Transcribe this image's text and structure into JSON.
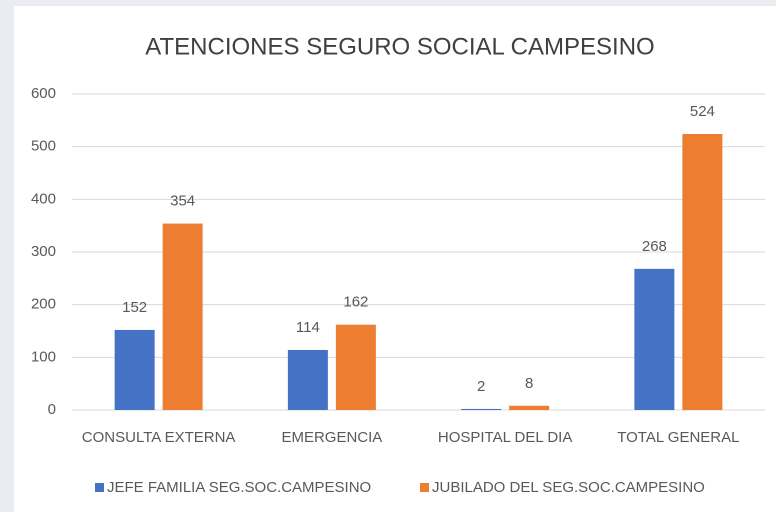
{
  "chart_data": {
    "type": "bar",
    "title": "ATENCIONES SEGURO SOCIAL CAMPESINO",
    "categories": [
      "CONSULTA EXTERNA",
      "EMERGENCIA",
      "HOSPITAL DEL DIA",
      "TOTAL GENERAL"
    ],
    "series": [
      {
        "name": "JEFE FAMILIA SEG.SOC.CAMPESINO",
        "color": "#4472c4",
        "values": [
          152,
          114,
          2,
          268
        ]
      },
      {
        "name": "JUBILADO DEL SEG.SOC.CAMPESINO",
        "color": "#ed7d31",
        "values": [
          354,
          162,
          8,
          524
        ]
      }
    ],
    "ylim": [
      0,
      600
    ],
    "yticks": [
      0,
      100,
      200,
      300,
      400,
      500,
      600
    ],
    "grid": true,
    "legend": "bottom"
  }
}
